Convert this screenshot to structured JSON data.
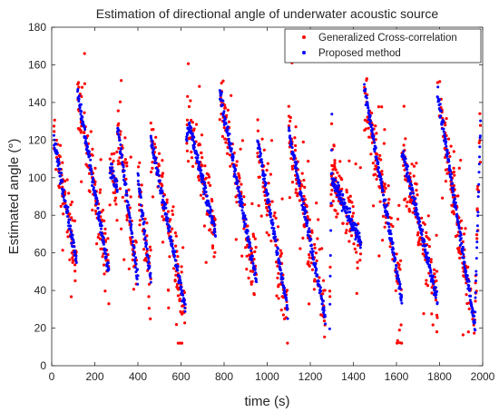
{
  "chart_data": {
    "type": "scatter",
    "title": "Estimation of directional angle of underwater acoustic source",
    "xlabel": "time (s)",
    "ylabel": "Estimated angle (°)",
    "xlim": [
      0,
      2000
    ],
    "ylim": [
      0,
      180
    ],
    "xticks": [
      0,
      200,
      400,
      600,
      800,
      1000,
      1200,
      1400,
      1600,
      1800,
      2000
    ],
    "yticks": [
      0,
      20,
      40,
      60,
      80,
      100,
      120,
      140,
      160,
      180
    ],
    "grid": false,
    "legend_position": "top-right",
    "segments": [
      {
        "t0": 10,
        "t1": 115,
        "a0": 120,
        "a1": 55
      },
      {
        "t0": 120,
        "t1": 265,
        "a0": 145,
        "a1": 50
      },
      {
        "t0": 270,
        "t1": 305,
        "a0": 105,
        "a1": 95
      },
      {
        "t0": 305,
        "t1": 400,
        "a0": 128,
        "a1": 45
      },
      {
        "t0": 400,
        "t1": 460,
        "a0": 100,
        "a1": 45
      },
      {
        "t0": 460,
        "t1": 620,
        "a0": 120,
        "a1": 30
      },
      {
        "t0": 625,
        "t1": 640,
        "a0": 120,
        "a1": 130
      },
      {
        "t0": 640,
        "t1": 760,
        "a0": 128,
        "a1": 70
      },
      {
        "t0": 780,
        "t1": 950,
        "a0": 145,
        "a1": 45
      },
      {
        "t0": 955,
        "t1": 1095,
        "a0": 120,
        "a1": 30
      },
      {
        "t0": 1100,
        "t1": 1270,
        "a0": 125,
        "a1": 25
      },
      {
        "t0": 1290,
        "t1": 1300,
        "a0": 20,
        "a1": 130
      },
      {
        "t0": 1300,
        "t1": 1435,
        "a0": 100,
        "a1": 65
      },
      {
        "t0": 1450,
        "t1": 1625,
        "a0": 148,
        "a1": 35
      },
      {
        "t0": 1625,
        "t1": 1790,
        "a0": 115,
        "a1": 35
      },
      {
        "t0": 1790,
        "t1": 1965,
        "a0": 145,
        "a1": 20
      },
      {
        "t0": 1965,
        "t1": 1990,
        "a0": 30,
        "a1": 130
      }
    ],
    "series": [
      {
        "name": "Generalized Cross-correlation",
        "color": "#ff0000",
        "marker": "dot",
        "scatter_spread_deg": 14,
        "outlier_fraction": 0.12
      },
      {
        "name": "Proposed method",
        "color": "#0000ff",
        "marker": "dot",
        "scatter_spread_deg": 2
      }
    ]
  }
}
